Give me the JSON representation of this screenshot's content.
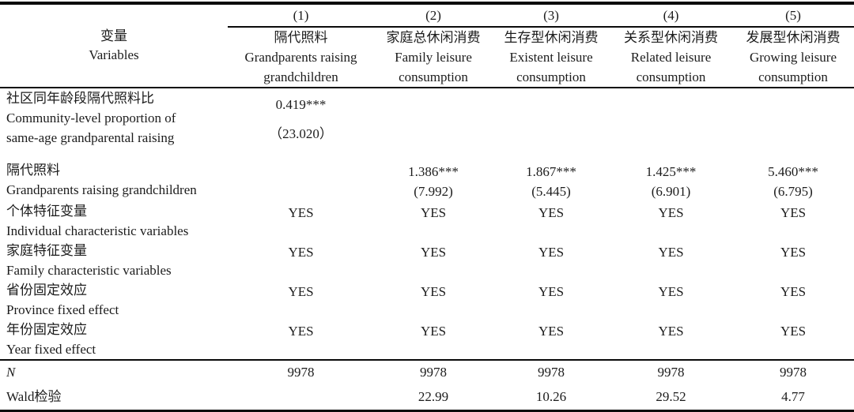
{
  "table": {
    "corner": {
      "zh": "变量",
      "en": "Variables"
    },
    "column_numbers": [
      "(1)",
      "(2)",
      "(3)",
      "(4)",
      "(5)"
    ],
    "columns": [
      {
        "zh": "隔代照料",
        "en_line1": "Grandparents raising",
        "en_line2": "grandchildren"
      },
      {
        "zh": "家庭总休闲消费",
        "en_line1": "Family leisure",
        "en_line2": "consumption"
      },
      {
        "zh": "生存型休闲消费",
        "en_line1": "Existent leisure",
        "en_line2": "consumption"
      },
      {
        "zh": "关系型休闲消费",
        "en_line1": "Related leisure",
        "en_line2": "consumption"
      },
      {
        "zh": "发展型休闲消费",
        "en_line1": "Growing leisure",
        "en_line2": "consumption"
      }
    ],
    "rows": {
      "community": {
        "label_zh": "社区同年龄段隔代照料比",
        "label_en_line1": "Community-level proportion of",
        "label_en_line2": "same-age grandparental raising",
        "col1": {
          "coef": "0.419***",
          "t": "（23.020）"
        }
      },
      "grandparents": {
        "label_zh": "隔代照料",
        "label_en": "Grandparents raising grandchildren",
        "cells": [
          {
            "coef": "1.386***",
            "t": "(7.992)"
          },
          {
            "coef": "1.867***",
            "t": "(5.445)"
          },
          {
            "coef": "1.425***",
            "t": "(6.901)"
          },
          {
            "coef": "5.460***",
            "t": "(6.795)"
          }
        ]
      },
      "controls": [
        {
          "label_zh": "个体特征变量",
          "label_en": "Individual characteristic variables",
          "values": [
            "YES",
            "YES",
            "YES",
            "YES",
            "YES"
          ]
        },
        {
          "label_zh": "家庭特征变量",
          "label_en": "Family characteristic variables",
          "values": [
            "YES",
            "YES",
            "YES",
            "YES",
            "YES"
          ]
        },
        {
          "label_zh": "省份固定效应",
          "label_en": "Province fixed effect",
          "values": [
            "YES",
            "YES",
            "YES",
            "YES",
            "YES"
          ]
        },
        {
          "label_zh": "年份固定效应",
          "label_en": "Year fixed effect",
          "values": [
            "YES",
            "YES",
            "YES",
            "YES",
            "YES"
          ]
        }
      ],
      "n_row": {
        "label": "N",
        "values": [
          "9978",
          "9978",
          "9978",
          "9978",
          "9978"
        ]
      },
      "wald_row": {
        "label": "Wald检验",
        "values": [
          "22.99",
          "10.26",
          "29.52",
          "4.77"
        ]
      }
    }
  }
}
